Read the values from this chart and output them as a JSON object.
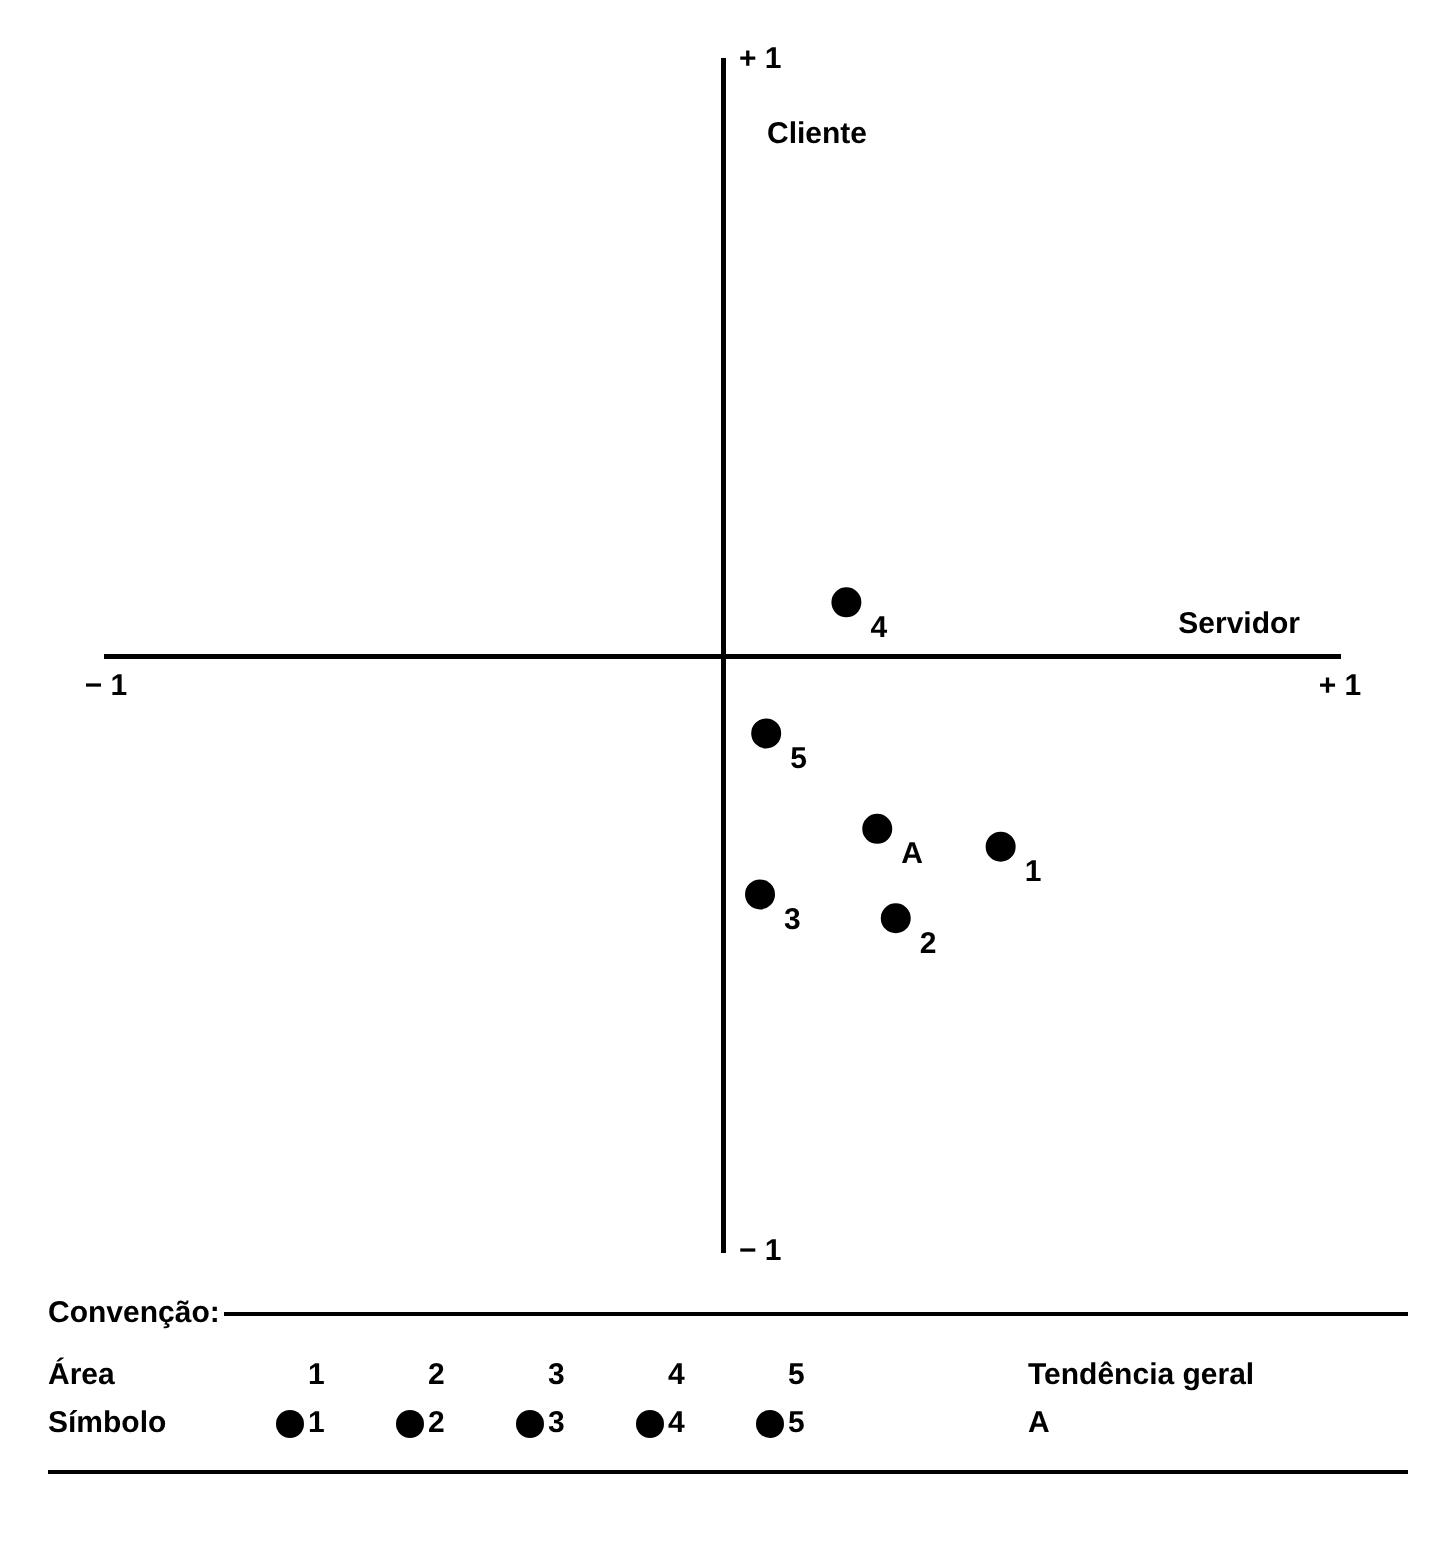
{
  "chart_data": {
    "type": "scatter",
    "xlabel": "Servidor",
    "ylabel": "Cliente",
    "series": [
      {
        "name": "1",
        "color": "#000000",
        "x": [
          0.45
        ],
        "values": [
          -0.32
        ]
      },
      {
        "name": "2",
        "color": "#000000",
        "x": [
          0.28
        ],
        "values": [
          -0.44
        ]
      },
      {
        "name": "3",
        "color": "#000000",
        "x": [
          0.06
        ],
        "values": [
          -0.4
        ]
      },
      {
        "name": "4",
        "color": "#000000",
        "x": [
          0.2
        ],
        "values": [
          0.09
        ]
      },
      {
        "name": "5",
        "color": "#000000",
        "x": [
          0.07
        ],
        "values": [
          -0.13
        ]
      },
      {
        "name": "A",
        "color": "#000000",
        "x": [
          0.25
        ],
        "values": [
          -0.29
        ]
      }
    ],
    "marker": "circle",
    "grid": false,
    "legend": "bottom",
    "xlim": [
      -1,
      1
    ],
    "ylim": [
      -1,
      1
    ],
    "xticks": [
      {
        "value": -1,
        "label": "− 1"
      },
      {
        "value": 1,
        "label": "+ 1"
      }
    ],
    "yticks": [
      {
        "value": -1,
        "label": "− 1"
      },
      {
        "value": 1,
        "label": "+ 1"
      }
    ],
    "annotations": [
      "Convenção:",
      "Área",
      "1",
      "2",
      "3",
      "4",
      "5",
      "Tendência geral",
      "Símbolo"
    ]
  }
}
